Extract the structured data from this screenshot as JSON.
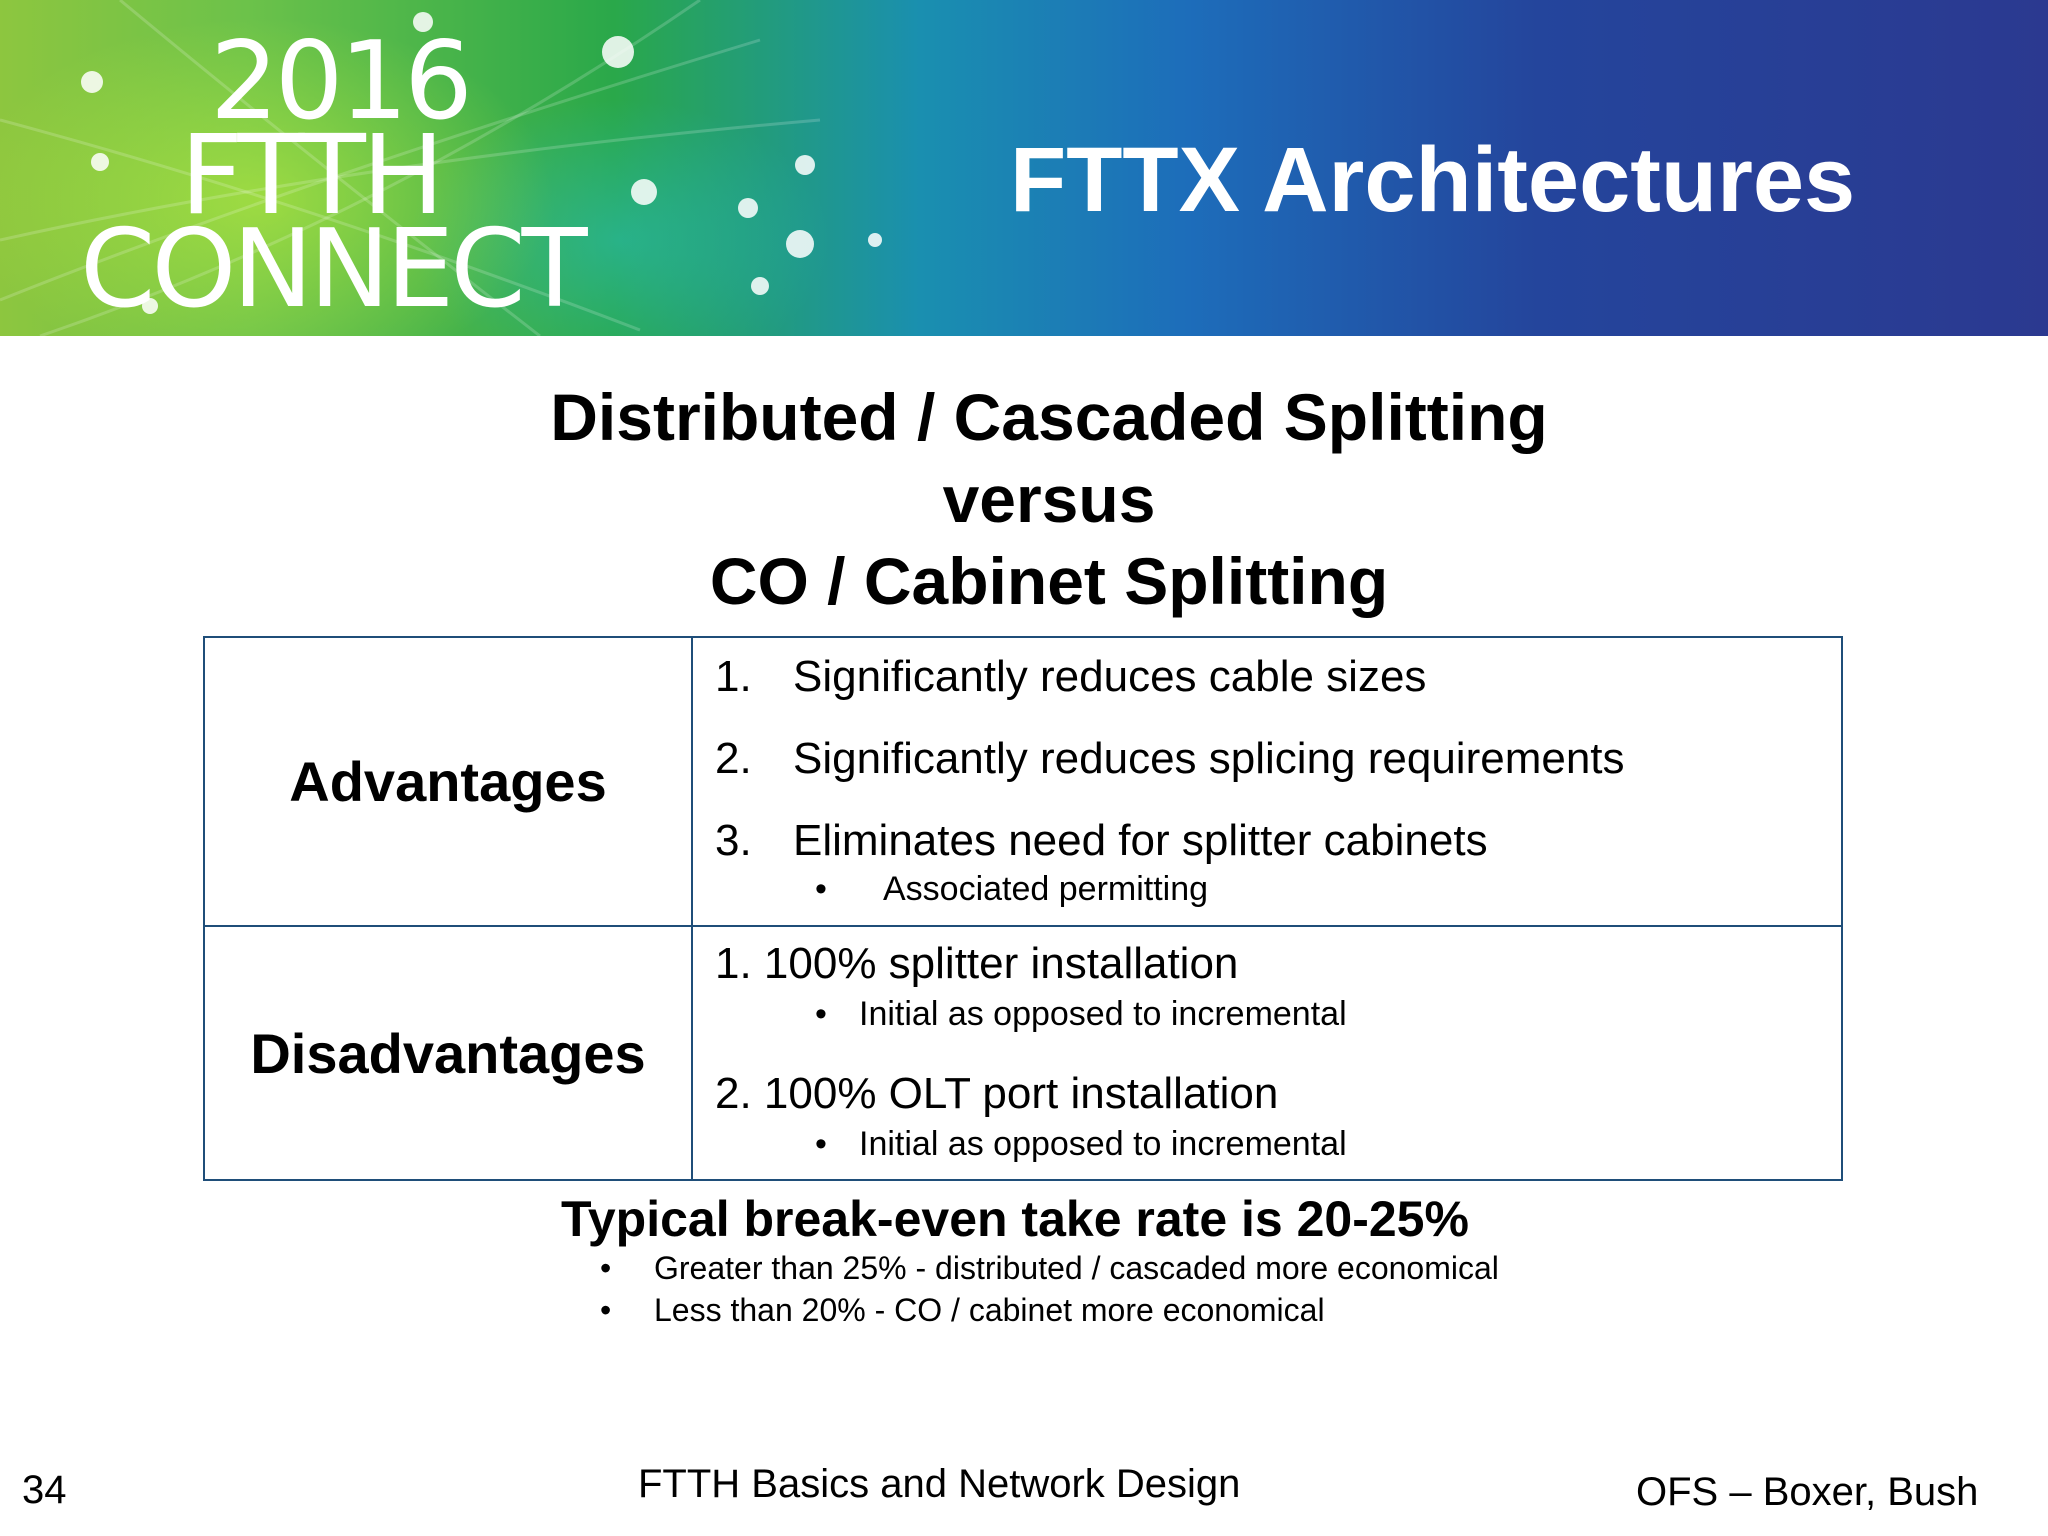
{
  "banner": {
    "logo_year": "2016",
    "logo_ftth": "FTTH",
    "logo_connect": "CONNECT",
    "title": "FTTX Architectures"
  },
  "heading": {
    "line1": "Distributed / Cascaded Splitting",
    "line2": "versus",
    "line3": "CO / Cabinet Splitting"
  },
  "table": {
    "advantages": {
      "label": "Advantages",
      "items": [
        {
          "num": "1.",
          "text": "Significantly reduces cable sizes"
        },
        {
          "num": "2.",
          "text": "Significantly reduces splicing requirements"
        },
        {
          "num": "3.",
          "text": "Eliminates need for splitter cabinets"
        }
      ],
      "sub_bullet": "Associated permitting"
    },
    "disadvantages": {
      "label": "Disadvantages",
      "items": [
        {
          "text": "1. 100% splitter installation",
          "sub": "Initial as opposed to incremental"
        },
        {
          "text": "2. 100% OLT port installation",
          "sub": "Initial as opposed to incremental"
        }
      ]
    }
  },
  "summary": {
    "title": "Typical break-even take rate is 20-25%",
    "bullets": [
      "Greater than 25% - distributed / cascaded more economical",
      "Less than 20% - CO / cabinet more economical"
    ]
  },
  "footer": {
    "slide_number": "34",
    "center": "FTTH Basics and Network Design",
    "right": "OFS – Boxer, Bush"
  },
  "colors": {
    "table_border": "#1f4e79",
    "banner_start": "#8dc63f",
    "banner_end": "#2b3990"
  }
}
